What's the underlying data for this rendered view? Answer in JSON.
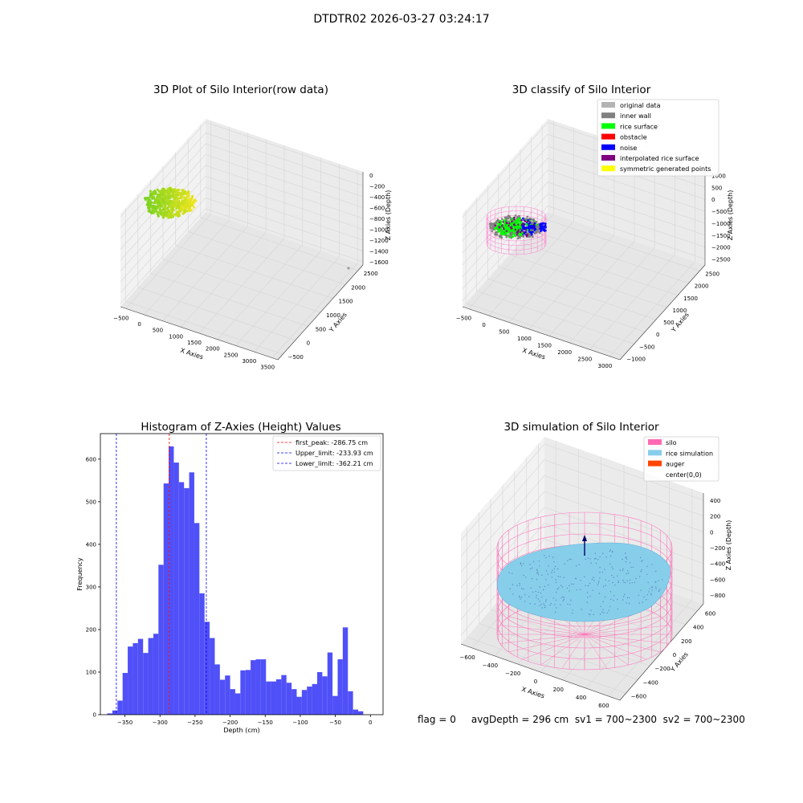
{
  "suptitle": "DTDTR02 2026-03-27 03:24:17",
  "status_line": "flag = 0     avgDepth = 296 cm  sv1 = 700~2300  sv2 = 700~2300",
  "chart_data": [
    {
      "type": "scatter",
      "subtype": "3d",
      "title": "3D Plot of Silo Interior(row data)",
      "xlabel": "X Axies",
      "ylabel": "Y Axies",
      "zlabel": "Z Axies (Depth)",
      "xticks": [
        "−500",
        "0",
        "500",
        "1000",
        "1500",
        "2000",
        "2500",
        "3000",
        "3500"
      ],
      "yticks": [
        "−500",
        "0",
        "500",
        "1000",
        "1500",
        "2000",
        "2500"
      ],
      "zticks": [
        "0",
        "−200",
        "−400",
        "−600",
        "−800",
        "−1000",
        "−1200",
        "−1400",
        "−1600"
      ],
      "colors": {
        "points_start": "#7ed321",
        "points_end": "#f5e61c",
        "outlier": "#9e9e9e"
      }
    },
    {
      "type": "scatter",
      "subtype": "3d",
      "title": "3D classify of Silo Interior",
      "xlabel": "X Axies",
      "ylabel": "Y Axies",
      "zlabel": "Z Axies (Depth)",
      "xticks": [
        "−500",
        "0",
        "500",
        "1000",
        "1500",
        "2000",
        "2500",
        "3000"
      ],
      "yticks": [
        "−1000",
        "−500",
        "0",
        "500",
        "1000",
        "1500",
        "2000",
        "2500"
      ],
      "zticks": [
        "1000",
        "500",
        "0",
        "−500",
        "−1000",
        "−1500",
        "−2000",
        "−2500"
      ],
      "legend_position": "top-right",
      "legend": [
        {
          "label": "original data",
          "color": "#b3b3b3"
        },
        {
          "label": "inner wall",
          "color": "#808080"
        },
        {
          "label": "rice surface",
          "color": "#00ff00"
        },
        {
          "label": "obstacle",
          "color": "#ff0000"
        },
        {
          "label": "noise",
          "color": "#0000ff"
        },
        {
          "label": "interpolated rice surface",
          "color": "#800080"
        },
        {
          "label": "symmetric generated points",
          "color": "#ffff00"
        }
      ]
    },
    {
      "type": "bar",
      "subtype": "histogram",
      "title": "Histogram of Z-Axies (Height) Values",
      "xlabel": "Depth (cm)",
      "ylabel": "Frequency",
      "xlim": [
        -385,
        18
      ],
      "ylim": [
        0,
        660
      ],
      "xticks": [
        -350,
        -300,
        -250,
        -200,
        -150,
        -100,
        -50,
        0
      ],
      "xtick_labels": [
        "−350",
        "−300",
        "−250",
        "−200",
        "−150",
        "−100",
        "−50",
        "0"
      ],
      "yticks": [
        0,
        100,
        200,
        300,
        400,
        500,
        600
      ],
      "bar_color": "#5050f8",
      "bin_start": -375.2,
      "bin_width": 7.3,
      "counts": [
        3,
        10,
        33,
        98,
        160,
        168,
        178,
        145,
        180,
        190,
        352,
        543,
        630,
        592,
        546,
        532,
        569,
        450,
        285,
        218,
        180,
        118,
        82,
        92,
        60,
        50,
        104,
        105,
        128,
        130,
        130,
        78,
        78,
        83,
        93,
        75,
        60,
        42,
        58,
        66,
        72,
        100,
        90,
        146,
        44,
        130,
        205,
        55,
        12,
        8
      ],
      "lines": [
        {
          "label": "first_peak: -286.75 cm",
          "x": -286.75,
          "color": "#ff0000"
        },
        {
          "label": "Upper_limit: -233.93 cm",
          "x": -233.93,
          "color": "#0000ff"
        },
        {
          "label": "Lower_limit: -362.21 cm",
          "x": -362.21,
          "color": "#0000ff"
        }
      ],
      "legend_position": "top-right"
    },
    {
      "type": "scatter",
      "subtype": "3d-surface",
      "title": "3D simulation of Silo Interior",
      "xlabel": "X Axies",
      "ylabel": "Y Axies",
      "zlabel": "Z Axies (Depth)",
      "xticks": [
        "−600",
        "−400",
        "−200",
        "0",
        "200",
        "400",
        "600"
      ],
      "yticks": [
        "−600",
        "−400",
        "−200",
        "0",
        "200",
        "400",
        "600"
      ],
      "zticks": [
        "400",
        "200",
        "0",
        "−200",
        "−400",
        "−600",
        "−800"
      ],
      "legend_position": "top-right",
      "legend": [
        {
          "label": "silo",
          "color": "#ff69b4",
          "swatch": true
        },
        {
          "label": "rice simulation",
          "color": "#87ceeb",
          "swatch": true
        },
        {
          "label": "auger",
          "color": "#ff4500",
          "swatch": true
        },
        {
          "label": "center(0,0)",
          "color": "#ffffff",
          "swatch": false
        }
      ]
    }
  ]
}
